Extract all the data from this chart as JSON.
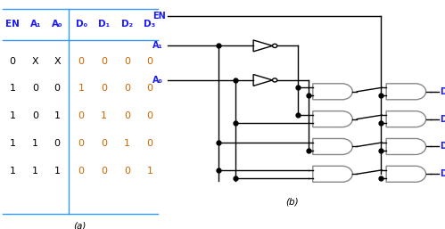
{
  "title_a": "(a)",
  "title_b": "(b)",
  "table_headers": [
    "EN",
    "A₁",
    "A₀",
    "D₀",
    "D₁",
    "D₂",
    "D₃"
  ],
  "table_data": [
    [
      "0",
      "X",
      "X",
      "0",
      "0",
      "0",
      "0"
    ],
    [
      "1",
      "0",
      "0",
      "1",
      "0",
      "0",
      "0"
    ],
    [
      "1",
      "0",
      "1",
      "0",
      "1",
      "0",
      "0"
    ],
    [
      "1",
      "1",
      "0",
      "0",
      "0",
      "1",
      "0"
    ],
    [
      "1",
      "1",
      "1",
      "0",
      "0",
      "0",
      "1"
    ]
  ],
  "header_color": "#1a1aff",
  "table_line_color": "#3399ff",
  "data_color_left": "#000000",
  "data_color_right": "#cc6600",
  "bg_color": "#ffffff",
  "gate_color": "#888888",
  "wire_color": "#000000",
  "label_color": "#cc6600"
}
